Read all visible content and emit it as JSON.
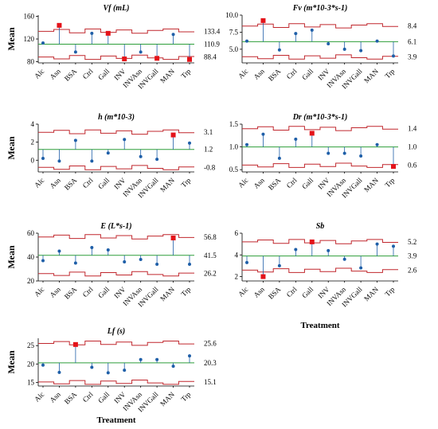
{
  "y_axis_label": "Mean",
  "x_axis_label": "Treatment",
  "chart_data": [
    {
      "type": "line",
      "title": "Vf (mL)",
      "categories": [
        "Alc",
        "Asn",
        "BSA",
        "Ctrl",
        "Gall",
        "INV",
        "INVAsn",
        "INVGall",
        "MAN",
        "Trp"
      ],
      "values": [
        113,
        144,
        97,
        130,
        130,
        85,
        97,
        86,
        128,
        84
      ],
      "flagged": [
        false,
        true,
        false,
        false,
        true,
        true,
        false,
        true,
        false,
        true
      ],
      "center": 110.9,
      "ucl": 133.4,
      "lcl": 88.4,
      "limit_labels": [
        "133.4",
        "110.9",
        "88.4"
      ],
      "yticks": [
        80,
        120,
        160
      ],
      "ytick_labels": [
        "80",
        "120",
        "160"
      ],
      "ylim": [
        78,
        162
      ]
    },
    {
      "type": "line",
      "title": "Fv (m*10-3*s-1)",
      "categories": [
        "Alc",
        "Asn",
        "BSA",
        "Ctrl",
        "Gall",
        "INV",
        "INVAsn",
        "INVGall",
        "MAN",
        "Trp"
      ],
      "values": [
        6.2,
        9.2,
        4.9,
        7.3,
        7.8,
        5.8,
        5.0,
        4.8,
        6.2,
        4.0
      ],
      "flagged": [
        false,
        true,
        false,
        false,
        false,
        false,
        false,
        false,
        false,
        false
      ],
      "center": 6.1,
      "ucl": 8.4,
      "lcl": 3.9,
      "limit_labels": [
        "8.4",
        "6.1",
        "3.9"
      ],
      "yticks": [
        5.0,
        7.5,
        10.0
      ],
      "ytick_labels": [
        "5.0",
        "7.5",
        "10.0"
      ],
      "ylim": [
        3.0,
        10.0
      ]
    },
    {
      "type": "line",
      "title": "h (m*10-3)",
      "categories": [
        "Alc",
        "Asn",
        "BSA",
        "Ctrl",
        "Gall",
        "INV",
        "INVAsn",
        "INVGall",
        "MAN",
        "Trp"
      ],
      "values": [
        0.2,
        -0.1,
        2.2,
        -0.1,
        0.8,
        2.3,
        0.4,
        0.1,
        2.8,
        1.9
      ],
      "flagged": [
        false,
        false,
        false,
        false,
        false,
        false,
        false,
        false,
        true,
        false
      ],
      "center": 1.2,
      "ucl": 3.1,
      "lcl": -0.8,
      "limit_labels": [
        "3.1",
        "1.2",
        "-0.8"
      ],
      "yticks": [
        0,
        2,
        4
      ],
      "ytick_labels": [
        "0",
        "2",
        "4"
      ],
      "ylim": [
        -1.3,
        4.0
      ]
    },
    {
      "type": "line",
      "title": "Dr (m*10-3*s-1)",
      "categories": [
        "Alc",
        "Asn",
        "BSA",
        "Ctrl",
        "Gall",
        "INV",
        "INVAsn",
        "INVGall",
        "MAN",
        "Trp"
      ],
      "values": [
        1.05,
        1.28,
        0.75,
        1.17,
        1.3,
        0.86,
        0.86,
        0.8,
        1.05,
        0.57
      ],
      "flagged": [
        false,
        false,
        false,
        false,
        true,
        false,
        false,
        false,
        false,
        true
      ],
      "center": 1.0,
      "ucl": 1.4,
      "lcl": 0.6,
      "limit_labels": [
        "1.4",
        "1.0",
        "0.6"
      ],
      "yticks": [
        0.5,
        1.0,
        1.5
      ],
      "ytick_labels": [
        "0.5",
        "1.0",
        "1.5"
      ],
      "ylim": [
        0.45,
        1.5
      ]
    },
    {
      "type": "line",
      "title": "E (L*s-1)",
      "categories": [
        "Alc",
        "Asn",
        "BSA",
        "Ctrl",
        "Gall",
        "INV",
        "INVAsn",
        "INVGall",
        "MAN",
        "Trp"
      ],
      "values": [
        37,
        45,
        35,
        48,
        46,
        36,
        38,
        34,
        56,
        34
      ],
      "flagged": [
        false,
        false,
        false,
        false,
        false,
        false,
        false,
        false,
        true,
        false
      ],
      "center": 41.5,
      "ucl": 56.8,
      "lcl": 26.2,
      "limit_labels": [
        "56.8",
        "41.5",
        "26.2"
      ],
      "yticks": [
        20,
        40,
        60
      ],
      "ytick_labels": [
        "20",
        "40",
        "60"
      ],
      "ylim": [
        20,
        60
      ]
    },
    {
      "type": "line",
      "title": "Sb",
      "categories": [
        "Alc",
        "Asn",
        "BSA",
        "Ctrl",
        "Gall",
        "INV",
        "INVAsn",
        "INVGall",
        "MAN",
        "Trp"
      ],
      "values": [
        3.3,
        2.0,
        3.0,
        4.5,
        5.2,
        4.4,
        3.6,
        2.8,
        5.0,
        4.8
      ],
      "flagged": [
        false,
        true,
        false,
        false,
        true,
        false,
        false,
        false,
        false,
        false
      ],
      "center": 3.9,
      "ucl": 5.2,
      "lcl": 2.6,
      "limit_labels": [
        "5.2",
        "3.9",
        "2.6"
      ],
      "yticks": [
        2,
        4,
        6
      ],
      "ytick_labels": [
        "2",
        "4",
        "6"
      ],
      "ylim": [
        1.6,
        6.0
      ]
    },
    {
      "type": "line",
      "title": "Lf (s)",
      "categories": [
        "Alc",
        "Asn",
        "BSA",
        "Ctrl",
        "Gall",
        "INV",
        "INVAsn",
        "INVGall",
        "MAN",
        "Trp"
      ],
      "values": [
        19.7,
        17.7,
        25.3,
        19.1,
        17.6,
        18.3,
        21.2,
        21.2,
        19.4,
        22.2
      ],
      "flagged": [
        false,
        false,
        true,
        false,
        false,
        false,
        false,
        false,
        false,
        false
      ],
      "center": 20.3,
      "ucl": 25.6,
      "lcl": 15.1,
      "limit_labels": [
        "25.6",
        "20.3",
        "15.1"
      ],
      "yticks": [
        15,
        20,
        25
      ],
      "ytick_labels": [
        "15",
        "20",
        "25"
      ],
      "ylim": [
        14,
        27
      ]
    }
  ]
}
